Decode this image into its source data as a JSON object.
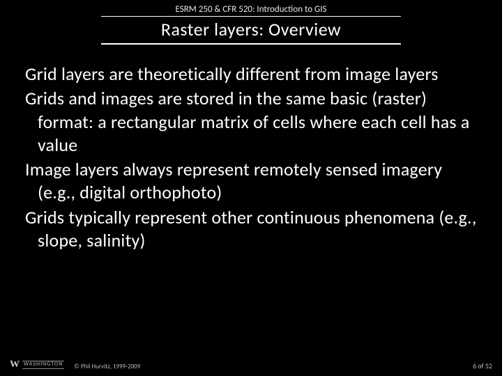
{
  "header": {
    "course": "ESRM 250 & CFR 520: Introduction to GIS",
    "title": "Raster layers: Overview"
  },
  "content": {
    "paragraphs": [
      "Grid layers are theoretically different from image layers",
      "Grids and images are stored in the same basic (raster) format: a rectangular matrix of cells where each cell has a value",
      "Image layers always represent remotely sensed imagery (e.g., digital orthophoto)",
      "Grids typically represent other continuous phenomena (e.g., slope, salinity)"
    ]
  },
  "footer": {
    "logo_w": "W",
    "logo_text": "WASHINGTON",
    "copyright": "© Phil Hurvitz, 1999-2009",
    "page": "6 of 52"
  },
  "style": {
    "background_color": "#000000",
    "text_color": "#ffffff",
    "title_fontsize": 26,
    "body_fontsize": 26,
    "footer_fontsize": 9
  }
}
